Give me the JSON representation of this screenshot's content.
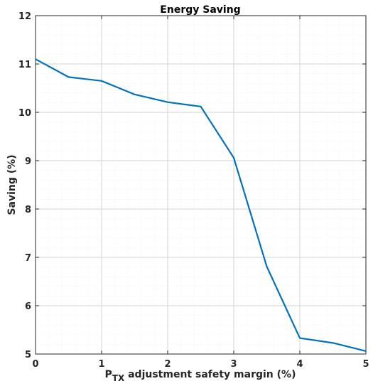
{
  "chart_data": {
    "type": "line",
    "title": "Energy Saving",
    "xlabel_main": "P",
    "xlabel_sub": "TX",
    "xlabel_rest": " adjustment safety margin (%)",
    "ylabel": "Saving (%)",
    "xlim": [
      0,
      5
    ],
    "ylim": [
      5,
      12
    ],
    "xticks": [
      0,
      1,
      2,
      3,
      4,
      5
    ],
    "yticks": [
      5,
      6,
      7,
      8,
      9,
      10,
      11,
      12
    ],
    "xtick_labels": [
      "0",
      "1",
      "2",
      "3",
      "4",
      "5"
    ],
    "ytick_labels": [
      "5",
      "6",
      "7",
      "8",
      "9",
      "10",
      "11",
      "12"
    ],
    "grid": true,
    "minor_grid": true,
    "line_color": "#0072BD",
    "series": [
      {
        "x": [
          0,
          0.5,
          1,
          1.5,
          2,
          2.5,
          3,
          3.5,
          4,
          4.5,
          5
        ],
        "values": [
          11.1,
          10.73,
          10.65,
          10.37,
          10.21,
          10.12,
          9.06,
          6.81,
          5.33,
          5.23,
          5.06
        ]
      }
    ]
  }
}
